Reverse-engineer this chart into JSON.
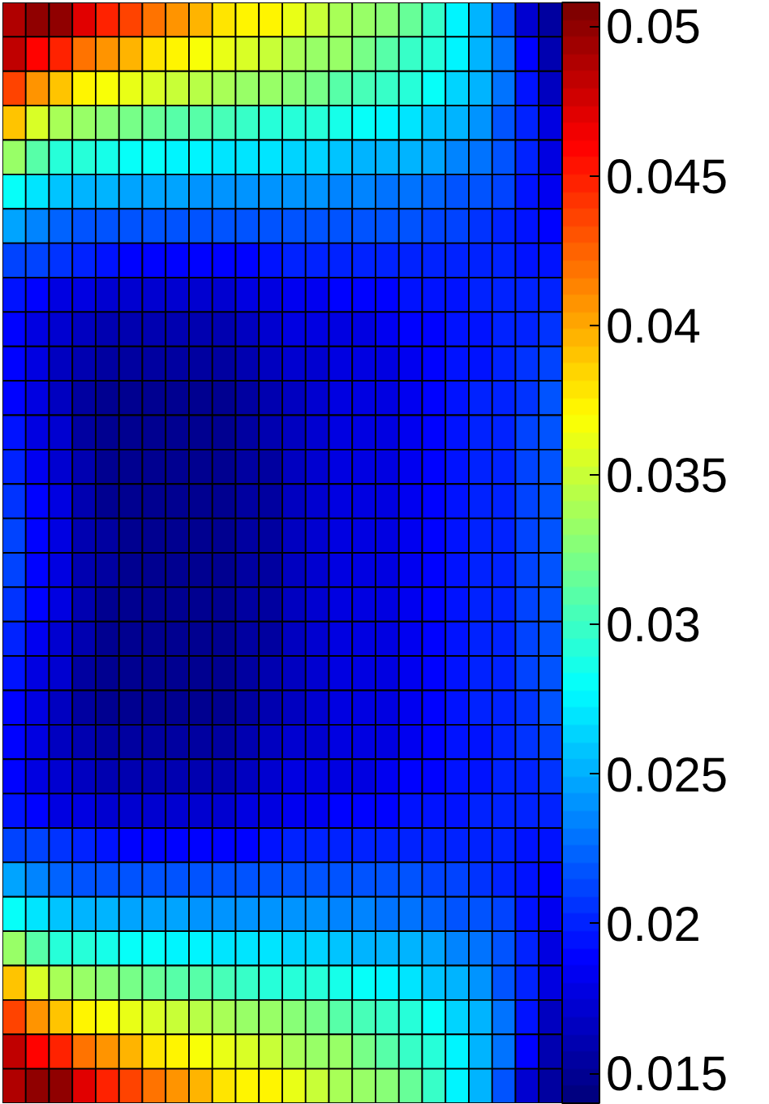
{
  "chart_data": {
    "type": "heatmap",
    "categories": [
      null,
      null,
      null,
      null,
      null,
      null,
      null,
      null,
      null,
      null,
      null,
      null,
      null,
      null,
      null,
      null,
      null,
      null,
      null,
      null,
      null,
      null,
      null,
      null
    ],
    "y_categories": [
      null,
      null,
      null,
      null,
      null,
      null,
      null,
      null,
      null,
      null,
      null,
      null,
      null,
      null,
      null,
      null,
      null,
      null,
      null,
      null,
      null,
      null,
      null,
      null,
      null,
      null,
      null,
      null,
      null,
      null,
      null,
      null
    ],
    "cells": [
      [
        0.049,
        0.05,
        0.05,
        0.047,
        0.0445,
        0.0435,
        0.042,
        0.041,
        0.0395,
        0.038,
        0.037,
        0.037,
        0.036,
        0.035,
        0.034,
        0.0335,
        0.0325,
        0.0315,
        0.03,
        0.0275,
        0.0255,
        0.022,
        0.017,
        0.0155
      ],
      [
        0.048,
        0.046,
        0.0445,
        0.042,
        0.0405,
        0.0395,
        0.038,
        0.0375,
        0.0365,
        0.036,
        0.0355,
        0.035,
        0.034,
        0.0335,
        0.033,
        0.032,
        0.031,
        0.03,
        0.029,
        0.0275,
        0.0255,
        0.023,
        0.019,
        0.016
      ],
      [
        0.0435,
        0.041,
        0.039,
        0.0375,
        0.0365,
        0.036,
        0.0355,
        0.035,
        0.0345,
        0.034,
        0.0335,
        0.033,
        0.0325,
        0.032,
        0.031,
        0.0305,
        0.03,
        0.029,
        0.028,
        0.0265,
        0.025,
        0.023,
        0.0195,
        0.0165
      ],
      [
        0.039,
        0.0355,
        0.034,
        0.033,
        0.0325,
        0.032,
        0.0315,
        0.031,
        0.031,
        0.0305,
        0.03,
        0.0295,
        0.0295,
        0.029,
        0.0285,
        0.028,
        0.0275,
        0.027,
        0.026,
        0.025,
        0.024,
        0.022,
        0.02,
        0.0175
      ],
      [
        0.0335,
        0.031,
        0.0295,
        0.029,
        0.0285,
        0.028,
        0.028,
        0.0275,
        0.0275,
        0.027,
        0.027,
        0.027,
        0.0265,
        0.0265,
        0.026,
        0.0255,
        0.0255,
        0.025,
        0.0245,
        0.0235,
        0.023,
        0.0215,
        0.02,
        0.018
      ],
      [
        0.028,
        0.027,
        0.026,
        0.0255,
        0.025,
        0.0245,
        0.0245,
        0.0245,
        0.024,
        0.024,
        0.024,
        0.024,
        0.024,
        0.024,
        0.0235,
        0.0235,
        0.023,
        0.023,
        0.0225,
        0.022,
        0.0215,
        0.021,
        0.0195,
        0.0185
      ],
      [
        0.0245,
        0.0235,
        0.0225,
        0.022,
        0.0215,
        0.0215,
        0.0215,
        0.0215,
        0.0215,
        0.0215,
        0.0215,
        0.0215,
        0.0215,
        0.0215,
        0.0215,
        0.0215,
        0.0215,
        0.0215,
        0.021,
        0.021,
        0.0205,
        0.02,
        0.0195,
        0.019
      ],
      [
        0.021,
        0.021,
        0.0205,
        0.02,
        0.0195,
        0.019,
        0.019,
        0.019,
        0.019,
        0.019,
        0.019,
        0.0195,
        0.02,
        0.02,
        0.02,
        0.02,
        0.02,
        0.02,
        0.02,
        0.02,
        0.02,
        0.02,
        0.0195,
        0.0195
      ],
      [
        0.0195,
        0.019,
        0.018,
        0.0175,
        0.017,
        0.017,
        0.017,
        0.017,
        0.017,
        0.017,
        0.0175,
        0.018,
        0.0185,
        0.0185,
        0.019,
        0.019,
        0.019,
        0.0195,
        0.0195,
        0.0195,
        0.02,
        0.02,
        0.02,
        0.02
      ],
      [
        0.019,
        0.018,
        0.017,
        0.0165,
        0.016,
        0.016,
        0.016,
        0.016,
        0.016,
        0.016,
        0.0165,
        0.017,
        0.0175,
        0.0175,
        0.018,
        0.018,
        0.0185,
        0.019,
        0.019,
        0.0195,
        0.0195,
        0.02,
        0.02,
        0.0205
      ],
      [
        0.019,
        0.0175,
        0.0165,
        0.016,
        0.0155,
        0.0155,
        0.0155,
        0.0155,
        0.0155,
        0.0155,
        0.016,
        0.0165,
        0.017,
        0.017,
        0.0175,
        0.018,
        0.018,
        0.0185,
        0.019,
        0.0195,
        0.0195,
        0.02,
        0.0205,
        0.021
      ],
      [
        0.019,
        0.0175,
        0.0165,
        0.0155,
        0.015,
        0.015,
        0.015,
        0.015,
        0.015,
        0.015,
        0.0155,
        0.016,
        0.0165,
        0.017,
        0.0175,
        0.0175,
        0.018,
        0.0185,
        0.019,
        0.0195,
        0.02,
        0.02,
        0.0205,
        0.0215
      ],
      [
        0.0195,
        0.018,
        0.017,
        0.0155,
        0.015,
        0.015,
        0.015,
        0.015,
        0.015,
        0.015,
        0.0155,
        0.016,
        0.0165,
        0.017,
        0.0175,
        0.0175,
        0.018,
        0.0185,
        0.019,
        0.0195,
        0.02,
        0.02,
        0.021,
        0.0215
      ],
      [
        0.02,
        0.0185,
        0.017,
        0.016,
        0.015,
        0.015,
        0.015,
        0.015,
        0.015,
        0.015,
        0.0155,
        0.0155,
        0.0165,
        0.017,
        0.0175,
        0.0175,
        0.018,
        0.0185,
        0.019,
        0.0195,
        0.02,
        0.02,
        0.021,
        0.0215
      ],
      [
        0.0205,
        0.019,
        0.0175,
        0.016,
        0.015,
        0.015,
        0.015,
        0.015,
        0.015,
        0.015,
        0.0155,
        0.0155,
        0.0165,
        0.017,
        0.0175,
        0.0175,
        0.018,
        0.0185,
        0.019,
        0.0195,
        0.02,
        0.02,
        0.021,
        0.0215
      ],
      [
        0.021,
        0.019,
        0.0175,
        0.016,
        0.0155,
        0.015,
        0.015,
        0.015,
        0.015,
        0.015,
        0.0155,
        0.0155,
        0.0165,
        0.017,
        0.0175,
        0.0175,
        0.018,
        0.0185,
        0.019,
        0.0195,
        0.02,
        0.02,
        0.021,
        0.0215
      ],
      [
        0.021,
        0.019,
        0.0175,
        0.016,
        0.0155,
        0.015,
        0.015,
        0.015,
        0.015,
        0.015,
        0.0155,
        0.0155,
        0.0165,
        0.017,
        0.0175,
        0.0175,
        0.018,
        0.0185,
        0.019,
        0.0195,
        0.02,
        0.02,
        0.021,
        0.0215
      ],
      [
        0.0205,
        0.019,
        0.0175,
        0.016,
        0.015,
        0.015,
        0.015,
        0.015,
        0.015,
        0.015,
        0.0155,
        0.0155,
        0.0165,
        0.017,
        0.0175,
        0.0175,
        0.018,
        0.0185,
        0.019,
        0.0195,
        0.02,
        0.02,
        0.021,
        0.0215
      ],
      [
        0.02,
        0.0185,
        0.017,
        0.016,
        0.015,
        0.015,
        0.015,
        0.015,
        0.015,
        0.015,
        0.0155,
        0.0155,
        0.0165,
        0.017,
        0.0175,
        0.0175,
        0.018,
        0.0185,
        0.019,
        0.0195,
        0.02,
        0.02,
        0.021,
        0.0215
      ],
      [
        0.0195,
        0.018,
        0.017,
        0.0155,
        0.015,
        0.015,
        0.015,
        0.015,
        0.015,
        0.015,
        0.0155,
        0.016,
        0.0165,
        0.017,
        0.0175,
        0.0175,
        0.018,
        0.0185,
        0.019,
        0.0195,
        0.02,
        0.02,
        0.021,
        0.0215
      ],
      [
        0.019,
        0.0175,
        0.0165,
        0.0155,
        0.015,
        0.015,
        0.015,
        0.015,
        0.015,
        0.015,
        0.0155,
        0.016,
        0.0165,
        0.017,
        0.0175,
        0.0175,
        0.018,
        0.0185,
        0.019,
        0.0195,
        0.02,
        0.02,
        0.0205,
        0.0215
      ],
      [
        0.019,
        0.0175,
        0.0165,
        0.016,
        0.0155,
        0.0155,
        0.0155,
        0.0155,
        0.0155,
        0.0155,
        0.016,
        0.0165,
        0.017,
        0.017,
        0.0175,
        0.018,
        0.018,
        0.0185,
        0.019,
        0.0195,
        0.0195,
        0.02,
        0.0205,
        0.021
      ],
      [
        0.019,
        0.018,
        0.017,
        0.0165,
        0.016,
        0.016,
        0.016,
        0.016,
        0.016,
        0.016,
        0.0165,
        0.017,
        0.0175,
        0.0175,
        0.018,
        0.018,
        0.0185,
        0.019,
        0.019,
        0.0195,
        0.0195,
        0.02,
        0.02,
        0.0205
      ],
      [
        0.0195,
        0.019,
        0.018,
        0.0175,
        0.017,
        0.017,
        0.017,
        0.017,
        0.017,
        0.017,
        0.0175,
        0.018,
        0.0185,
        0.0185,
        0.019,
        0.019,
        0.019,
        0.0195,
        0.0195,
        0.0195,
        0.02,
        0.02,
        0.02,
        0.02
      ],
      [
        0.021,
        0.021,
        0.0205,
        0.02,
        0.0195,
        0.019,
        0.019,
        0.019,
        0.019,
        0.019,
        0.019,
        0.0195,
        0.02,
        0.02,
        0.02,
        0.02,
        0.02,
        0.02,
        0.02,
        0.02,
        0.02,
        0.02,
        0.0195,
        0.0195
      ],
      [
        0.0245,
        0.0235,
        0.0225,
        0.022,
        0.0215,
        0.0215,
        0.0215,
        0.0215,
        0.0215,
        0.0215,
        0.0215,
        0.0215,
        0.0215,
        0.0215,
        0.0215,
        0.0215,
        0.0215,
        0.0215,
        0.021,
        0.021,
        0.0205,
        0.02,
        0.0195,
        0.019
      ],
      [
        0.028,
        0.027,
        0.026,
        0.0255,
        0.025,
        0.0245,
        0.0245,
        0.0245,
        0.024,
        0.024,
        0.024,
        0.024,
        0.024,
        0.024,
        0.0235,
        0.0235,
        0.023,
        0.023,
        0.0225,
        0.022,
        0.0215,
        0.021,
        0.0195,
        0.0185
      ],
      [
        0.0335,
        0.031,
        0.0295,
        0.029,
        0.0285,
        0.028,
        0.028,
        0.0275,
        0.0275,
        0.027,
        0.027,
        0.027,
        0.0265,
        0.0265,
        0.026,
        0.0255,
        0.0255,
        0.025,
        0.0245,
        0.0235,
        0.023,
        0.0215,
        0.02,
        0.018
      ],
      [
        0.039,
        0.0355,
        0.034,
        0.033,
        0.0325,
        0.032,
        0.0315,
        0.031,
        0.031,
        0.0305,
        0.03,
        0.0295,
        0.0295,
        0.029,
        0.0285,
        0.028,
        0.0275,
        0.027,
        0.026,
        0.025,
        0.024,
        0.022,
        0.02,
        0.0175
      ],
      [
        0.0435,
        0.041,
        0.039,
        0.0375,
        0.0365,
        0.036,
        0.0355,
        0.035,
        0.0345,
        0.034,
        0.0335,
        0.033,
        0.0325,
        0.032,
        0.031,
        0.0305,
        0.03,
        0.029,
        0.028,
        0.0265,
        0.025,
        0.023,
        0.0195,
        0.0165
      ],
      [
        0.048,
        0.046,
        0.0445,
        0.042,
        0.0405,
        0.0395,
        0.038,
        0.0375,
        0.0365,
        0.036,
        0.0355,
        0.035,
        0.034,
        0.0335,
        0.033,
        0.032,
        0.031,
        0.03,
        0.029,
        0.0275,
        0.0255,
        0.023,
        0.019,
        0.016
      ],
      [
        0.049,
        0.05,
        0.05,
        0.047,
        0.0445,
        0.0435,
        0.042,
        0.041,
        0.0395,
        0.038,
        0.037,
        0.037,
        0.036,
        0.035,
        0.034,
        0.0335,
        0.0325,
        0.0315,
        0.03,
        0.0275,
        0.0255,
        0.022,
        0.017,
        0.0155
      ]
    ],
    "clim": [
      0.014,
      0.0508
    ],
    "cticks": [
      0.015,
      0.02,
      0.025,
      0.03,
      0.035,
      0.04,
      0.045,
      0.05
    ]
  }
}
